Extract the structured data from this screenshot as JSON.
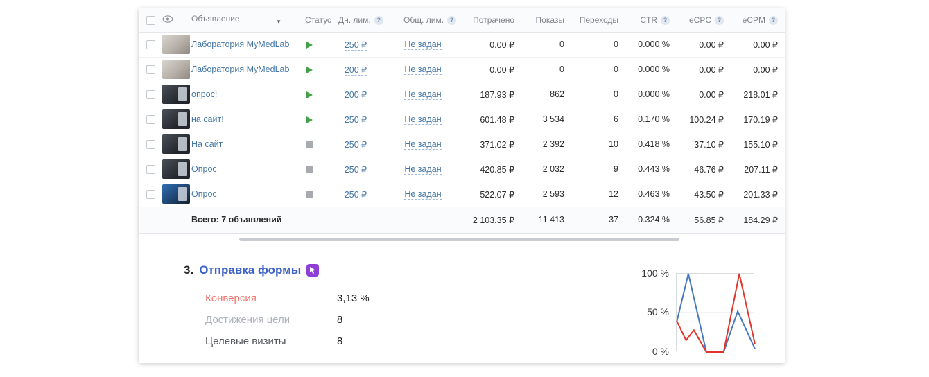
{
  "table": {
    "headers": {
      "ad": "Объявление",
      "status": "Статус",
      "daily_limit": "Дн. лим.",
      "total_limit": "Общ. лим.",
      "spent": "Потрачено",
      "impressions": "Показы",
      "clicks": "Переходы",
      "ctr": "CTR",
      "ecpc": "eCPC",
      "ecpm": "eCPM"
    },
    "rows": [
      {
        "name": "Лаборатория MyMedLab",
        "thumb": "photo",
        "status": "active",
        "daily_limit": "250 ₽",
        "total_limit": "Не задан",
        "spent": "0.00 ₽",
        "impressions": "0",
        "clicks": "0",
        "ctr": "0.000 %",
        "ecpc": "0.00 ₽",
        "ecpm": "0.00 ₽"
      },
      {
        "name": "Лаборатория MyMedLab",
        "thumb": "photo",
        "status": "active",
        "daily_limit": "200 ₽",
        "total_limit": "Не задан",
        "spent": "0.00 ₽",
        "impressions": "0",
        "clicks": "0",
        "ctr": "0.000 %",
        "ecpc": "0.00 ₽",
        "ecpm": "0.00 ₽"
      },
      {
        "name": "опрос!",
        "thumb": "dark",
        "status": "active",
        "daily_limit": "200 ₽",
        "total_limit": "Не задан",
        "spent": "187.93 ₽",
        "impressions": "862",
        "clicks": "0",
        "ctr": "0.000 %",
        "ecpc": "0.00 ₽",
        "ecpm": "218.01 ₽"
      },
      {
        "name": "на сайт!",
        "thumb": "dark",
        "status": "active",
        "daily_limit": "250 ₽",
        "total_limit": "Не задан",
        "spent": "601.48 ₽",
        "impressions": "3 534",
        "clicks": "6",
        "ctr": "0.170 %",
        "ecpc": "100.24 ₽",
        "ecpm": "170.19 ₽"
      },
      {
        "name": "На сайт",
        "thumb": "dark",
        "status": "stopped",
        "daily_limit": "250 ₽",
        "total_limit": "Не задан",
        "spent": "371.02 ₽",
        "impressions": "2 392",
        "clicks": "10",
        "ctr": "0.418 %",
        "ecpc": "37.10 ₽",
        "ecpm": "155.10 ₽"
      },
      {
        "name": "Опрос",
        "thumb": "dark",
        "status": "stopped",
        "daily_limit": "250 ₽",
        "total_limit": "Не задан",
        "spent": "420.85 ₽",
        "impressions": "2 032",
        "clicks": "9",
        "ctr": "0.443 %",
        "ecpc": "46.76 ₽",
        "ecpm": "207.11 ₽"
      },
      {
        "name": "Опрос",
        "thumb": "blue",
        "status": "stopped",
        "daily_limit": "250 ₽",
        "total_limit": "Не задан",
        "spent": "522.07 ₽",
        "impressions": "2 593",
        "clicks": "12",
        "ctr": "0.463 %",
        "ecpc": "43.50 ₽",
        "ecpm": "201.33 ₽"
      }
    ],
    "total": {
      "label": "Всего: 7 объявлений",
      "spent": "2 103.35 ₽",
      "impressions": "11 413",
      "clicks": "37",
      "ctr": "0.324 %",
      "ecpc": "56.85 ₽",
      "ecpm": "184.29 ₽"
    }
  },
  "goal": {
    "number": "3.",
    "title": "Отправка формы",
    "metrics": [
      {
        "label": "Конверсия",
        "value": "3,13 %"
      },
      {
        "label": "Достижения цели",
        "value": "8"
      },
      {
        "label": "Целевые визиты",
        "value": "8"
      }
    ]
  },
  "chart_data": {
    "type": "line",
    "title": "",
    "xlabel": "",
    "ylabel": "",
    "ylim": [
      0,
      100
    ],
    "ylabels": [
      "100 %",
      "50 %",
      "0 %"
    ],
    "grid": false,
    "legend": "none",
    "series": [
      {
        "name": "blue",
        "color": "#4878bd",
        "points": [
          {
            "x": 0,
            "y": 38
          },
          {
            "x": 15,
            "y": 100
          },
          {
            "x": 38,
            "y": 0
          },
          {
            "x": 60,
            "y": 0
          },
          {
            "x": 78,
            "y": 52
          },
          {
            "x": 100,
            "y": 4
          }
        ]
      },
      {
        "name": "red",
        "color": "#e0352b",
        "points": [
          {
            "x": 0,
            "y": 40
          },
          {
            "x": 12,
            "y": 15
          },
          {
            "x": 22,
            "y": 28
          },
          {
            "x": 38,
            "y": 0
          },
          {
            "x": 60,
            "y": 0
          },
          {
            "x": 80,
            "y": 100
          },
          {
            "x": 100,
            "y": 10
          }
        ]
      }
    ]
  },
  "icons": {
    "eye": "eye-outline",
    "info": "question-circle",
    "sort": "caret-down",
    "status_active": "green-play-triangle",
    "status_stopped": "gray-square",
    "goal_type": "purple-cursor-badge"
  },
  "colors": {
    "link_blue": "#4577a6",
    "active_green": "#43a047",
    "stopped_gray": "#a7abb0",
    "conversion_pink": "#f2766f",
    "goal_title_blue": "#3d63c9",
    "goal_icon_purple": "#8f3fd6",
    "chart_blue": "#4878bd",
    "chart_red": "#e0352b"
  }
}
